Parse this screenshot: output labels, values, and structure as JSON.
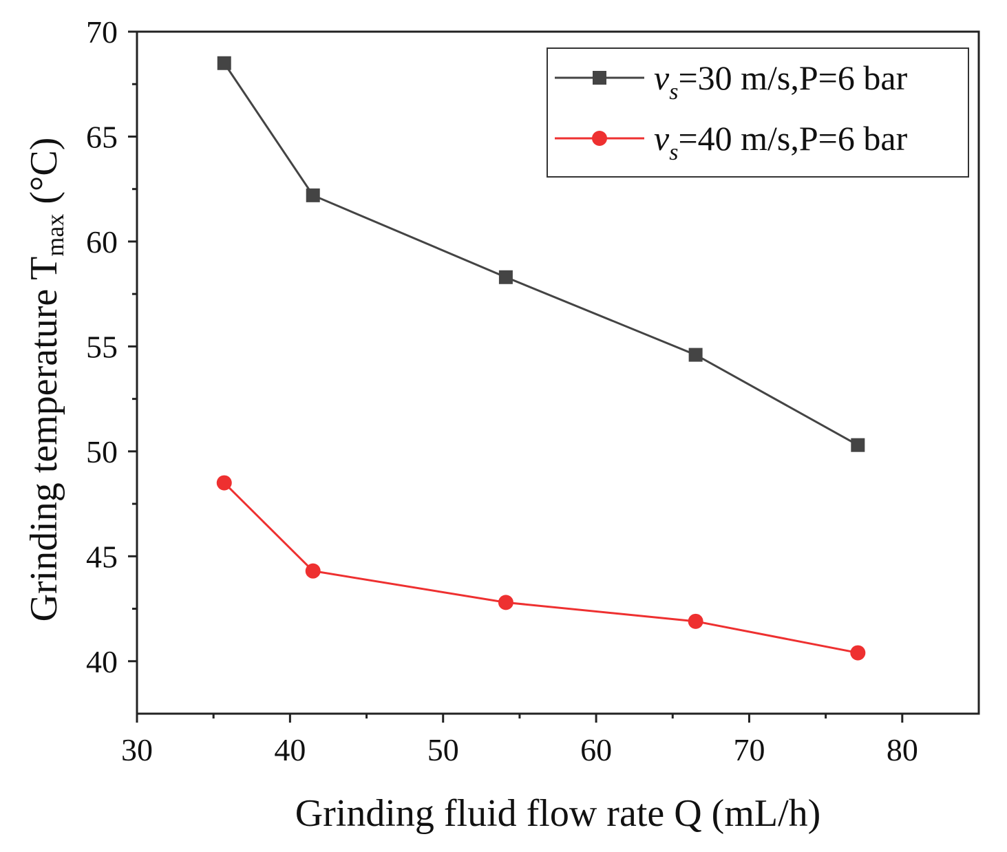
{
  "chart_data": {
    "type": "line",
    "title": "",
    "xlabel": "Grinding fluid flow rate Q (mL/h)",
    "ylabel": {
      "main": "Grinding temperature T",
      "subscript": "max",
      "unit": " (°C)"
    },
    "xlim": [
      30,
      85
    ],
    "ylim": [
      37.5,
      70
    ],
    "xticks": [
      30,
      40,
      50,
      60,
      70,
      80
    ],
    "xtick_labels": [
      "30",
      "40",
      "50",
      "60",
      "70",
      "80"
    ],
    "xminor": [
      35,
      45,
      55,
      65,
      75
    ],
    "yticks": [
      40,
      45,
      50,
      55,
      60,
      65,
      70
    ],
    "ytick_labels": [
      "40",
      "45",
      "50",
      "55",
      "60",
      "65",
      "70"
    ],
    "yminor": [
      42.5,
      47.5,
      52.5,
      57.5,
      62.5,
      67.5
    ],
    "grid": false,
    "legend_position": "top-right",
    "series": [
      {
        "name": "vs=30 m/s,P=6 bar",
        "legend": {
          "symbol": "v",
          "subscript": "s",
          "rest": "=30 m/s,P=6 bar"
        },
        "marker": "square",
        "color": "#444444",
        "x": [
          35.7,
          41.5,
          54.1,
          66.5,
          77.1
        ],
        "y": [
          68.5,
          62.2,
          58.3,
          54.6,
          50.3
        ]
      },
      {
        "name": "vs=40 m/s,P=6 bar",
        "legend": {
          "symbol": "v",
          "subscript": "s",
          "rest": "=40 m/s,P=6 bar"
        },
        "marker": "circle",
        "color": "#ee3030",
        "x": [
          35.7,
          41.5,
          54.1,
          66.5,
          77.1
        ],
        "y": [
          48.5,
          44.3,
          42.8,
          41.9,
          40.4
        ]
      }
    ]
  }
}
